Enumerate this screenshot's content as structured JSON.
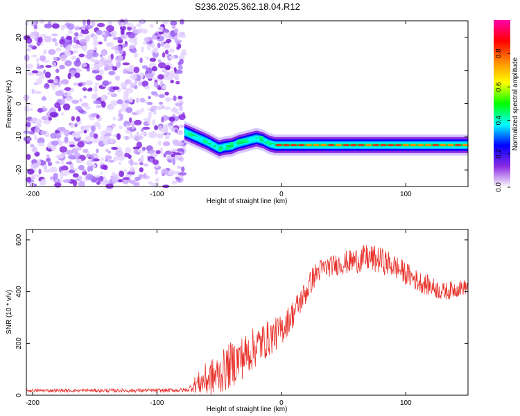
{
  "title": "S236.2025.362.18.04.R12",
  "chart_data": [
    {
      "type": "heatmap",
      "xlabel": "Height of straight line (km)",
      "ylabel": "Frequency (Hz)",
      "xlim": [
        -205,
        150
      ],
      "ylim": [
        -25,
        25
      ],
      "xticks": [
        -200,
        -100,
        0,
        100
      ],
      "yticks": [
        -20,
        -10,
        0,
        10,
        20
      ],
      "noise_region_x": [
        -205,
        -78
      ],
      "ridge": {
        "x": [
          -78,
          -72,
          -66,
          -60,
          -55,
          -50,
          -45,
          -40,
          -35,
          -30,
          -25,
          -20,
          -15,
          -10,
          -5,
          0,
          20,
          50,
          100,
          150
        ],
        "y": [
          -8.5,
          -9.5,
          -10.5,
          -11.5,
          -12.5,
          -13.5,
          -13,
          -12.8,
          -12,
          -11.5,
          -11,
          -10.5,
          -11,
          -12,
          -12.5,
          -12.5,
          -12.5,
          -12.5,
          -12.5,
          -12.5
        ]
      },
      "colorbar": {
        "label": "Normalized spectral amplitude",
        "range": [
          0,
          1
        ],
        "ticks": [
          0.0,
          0.2,
          0.4,
          0.6,
          0.8
        ],
        "tick_labels": [
          "0.0",
          "0.2",
          "0.4",
          "0.6",
          "0.8"
        ],
        "colors": [
          "#ffffff",
          "#8a2be2",
          "#0000ff",
          "#00ffff",
          "#00ff00",
          "#ffff00",
          "#ff8c00",
          "#ff0000",
          "#ff00aa"
        ]
      }
    },
    {
      "type": "line",
      "xlabel": "Height of straight line (km)",
      "ylabel": "SNR (10 * v/v)",
      "xlim": [
        -205,
        150
      ],
      "ylim": [
        0,
        640
      ],
      "xticks": [
        -200,
        -100,
        0,
        100
      ],
      "yticks": [
        0,
        200,
        400,
        600
      ],
      "color": "#e8312b",
      "profile": {
        "x": [
          -205,
          -150,
          -100,
          -75,
          -70,
          -60,
          -50,
          -40,
          -30,
          -20,
          -10,
          0,
          10,
          20,
          25,
          30,
          40,
          50,
          60,
          70,
          80,
          90,
          100,
          110,
          120,
          130,
          140,
          150
        ],
        "y": [
          18,
          18,
          18,
          20,
          40,
          60,
          80,
          120,
          150,
          190,
          220,
          250,
          320,
          400,
          450,
          480,
          500,
          510,
          520,
          530,
          520,
          500,
          470,
          440,
          420,
          400,
          410,
          420
        ]
      },
      "noise": {
        "x": [
          -205,
          -75,
          -70,
          -60,
          -40,
          -20,
          0,
          20,
          40,
          70,
          100,
          150
        ],
        "amp": [
          6,
          8,
          30,
          70,
          90,
          80,
          60,
          50,
          40,
          55,
          45,
          30
        ]
      }
    }
  ]
}
